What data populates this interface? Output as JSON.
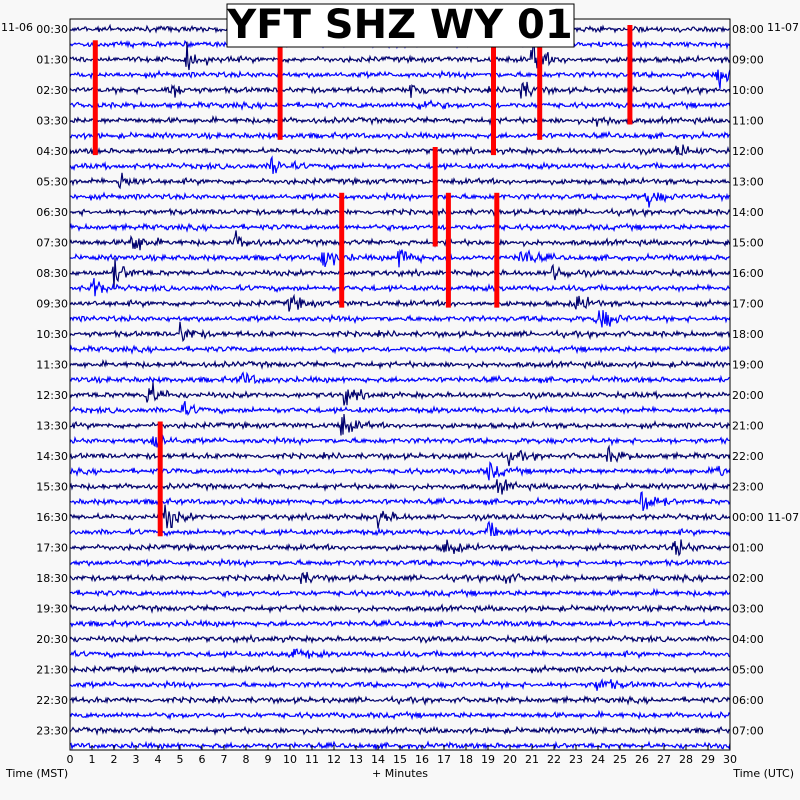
{
  "chart_data": {
    "type": "line",
    "title": "YFT SHZ WY 01",
    "left_date": "11-06",
    "right_date": "11-07",
    "xlabel": "+ Minutes",
    "left_axis_label": "Time (MST)",
    "right_axis_label": "Time (UTC)",
    "x_ticks": [
      "0",
      "1",
      "2",
      "3",
      "4",
      "5",
      "6",
      "7",
      "8",
      "9",
      "10",
      "11",
      "12",
      "13",
      "14",
      "15",
      "16",
      "17",
      "18",
      "19",
      "20",
      "21",
      "22",
      "23",
      "24",
      "25",
      "26",
      "27",
      "28",
      "29",
      "30"
    ],
    "xlim": [
      0,
      30
    ],
    "left_time_labels": [
      "00:30",
      "01:30",
      "02:30",
      "03:30",
      "04:30",
      "05:30",
      "06:30",
      "07:30",
      "08:30",
      "09:30",
      "10:30",
      "11:30",
      "12:30",
      "13:30",
      "14:30",
      "15:30",
      "16:30",
      "17:30",
      "18:30",
      "19:30",
      "20:30",
      "21:30",
      "22:30",
      "23:30"
    ],
    "right_time_labels": [
      "08:00",
      "09:00",
      "10:00",
      "11:00",
      "12:00",
      "13:00",
      "14:00",
      "15:00",
      "16:00",
      "17:00",
      "18:00",
      "19:00",
      "20:00",
      "21:00",
      "22:00",
      "23:00",
      "00:00 11-07",
      "01:00",
      "02:00",
      "03:00",
      "04:00",
      "05:00",
      "06:00",
      "07:00"
    ],
    "trace_count": 48,
    "trace_colors": [
      "#00006e",
      "#0000ff"
    ],
    "clip_color": "#ff0000",
    "clipped_segments": [
      {
        "minute": 1.15,
        "trace_start": 1,
        "trace_end": 8
      },
      {
        "minute": 9.55,
        "trace_start": 0,
        "trace_end": 7
      },
      {
        "minute": 19.25,
        "trace_start": 1,
        "trace_end": 8
      },
      {
        "minute": 21.35,
        "trace_start": 0,
        "trace_end": 7
      },
      {
        "minute": 25.45,
        "trace_start": 0,
        "trace_end": 6
      },
      {
        "minute": 16.6,
        "trace_start": 8,
        "trace_end": 14
      },
      {
        "minute": 12.35,
        "trace_start": 11,
        "trace_end": 18
      },
      {
        "minute": 17.2,
        "trace_start": 11,
        "trace_end": 18
      },
      {
        "minute": 19.4,
        "trace_start": 11,
        "trace_end": 18
      },
      {
        "minute": 4.1,
        "trace_start": 26,
        "trace_end": 33
      }
    ],
    "events": [
      {
        "trace": 2,
        "minute": 5.3,
        "amp": 0.9
      },
      {
        "trace": 2,
        "minute": 21.0,
        "amp": 1.3
      },
      {
        "trace": 3,
        "minute": 29.5,
        "amp": 0.9
      },
      {
        "trace": 4,
        "minute": 4.5,
        "amp": 0.7
      },
      {
        "trace": 4,
        "minute": 15.5,
        "amp": 0.8
      },
      {
        "trace": 4,
        "minute": 20.5,
        "amp": 0.8
      },
      {
        "trace": 5,
        "minute": 15.8,
        "amp": 0.6
      },
      {
        "trace": 6,
        "minute": 24.0,
        "amp": 0.5
      },
      {
        "trace": 8,
        "minute": 27.6,
        "amp": 0.6
      },
      {
        "trace": 9,
        "minute": 9.2,
        "amp": 0.9
      },
      {
        "trace": 10,
        "minute": 2.3,
        "amp": 0.8
      },
      {
        "trace": 11,
        "minute": 26.2,
        "amp": 0.8
      },
      {
        "trace": 14,
        "minute": 2.8,
        "amp": 1.0
      },
      {
        "trace": 14,
        "minute": 7.5,
        "amp": 0.7
      },
      {
        "trace": 15,
        "minute": 11.5,
        "amp": 1.1
      },
      {
        "trace": 15,
        "minute": 15.0,
        "amp": 1.0
      },
      {
        "trace": 15,
        "minute": 20.5,
        "amp": 0.9
      },
      {
        "trace": 16,
        "minute": 2.0,
        "amp": 1.0
      },
      {
        "trace": 16,
        "minute": 22.0,
        "amp": 0.8
      },
      {
        "trace": 17,
        "minute": 1.0,
        "amp": 0.8
      },
      {
        "trace": 18,
        "minute": 10.0,
        "amp": 0.6
      },
      {
        "trace": 18,
        "minute": 23.0,
        "amp": 0.7
      },
      {
        "trace": 19,
        "minute": 24.0,
        "amp": 1.2
      },
      {
        "trace": 20,
        "minute": 5.0,
        "amp": 0.8
      },
      {
        "trace": 23,
        "minute": 7.8,
        "amp": 0.6
      },
      {
        "trace": 24,
        "minute": 3.5,
        "amp": 1.1
      },
      {
        "trace": 24,
        "minute": 12.5,
        "amp": 0.7
      },
      {
        "trace": 25,
        "minute": 5.0,
        "amp": 0.6
      },
      {
        "trace": 26,
        "minute": 12.3,
        "amp": 1.0
      },
      {
        "trace": 27,
        "minute": 3.8,
        "amp": 0.8
      },
      {
        "trace": 28,
        "minute": 20.0,
        "amp": 0.5
      },
      {
        "trace": 28,
        "minute": 24.5,
        "amp": 0.6
      },
      {
        "trace": 29,
        "minute": 19.0,
        "amp": 0.7
      },
      {
        "trace": 29,
        "minute": 29.4,
        "amp": 0.6
      },
      {
        "trace": 30,
        "minute": 19.5,
        "amp": 0.6
      },
      {
        "trace": 31,
        "minute": 26.0,
        "amp": 1.1
      },
      {
        "trace": 32,
        "minute": 4.2,
        "amp": 1.4
      },
      {
        "trace": 32,
        "minute": 14.0,
        "amp": 0.8
      },
      {
        "trace": 33,
        "minute": 19.0,
        "amp": 0.6
      },
      {
        "trace": 34,
        "minute": 17.0,
        "amp": 0.7
      },
      {
        "trace": 34,
        "minute": 27.5,
        "amp": 0.7
      },
      {
        "trace": 36,
        "minute": 10.5,
        "amp": 0.5
      },
      {
        "trace": 36,
        "minute": 19.5,
        "amp": 0.7
      },
      {
        "trace": 41,
        "minute": 10.0,
        "amp": 0.6
      },
      {
        "trace": 43,
        "minute": 24.0,
        "amp": 0.7
      }
    ]
  }
}
